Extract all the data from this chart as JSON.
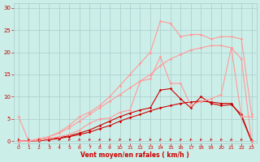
{
  "bg_color": "#cceee8",
  "grid_color": "#aacccc",
  "xlabel": "Vent moyen/en rafales ( km/h )",
  "xlabel_color": "#cc0000",
  "xticks": [
    0,
    1,
    2,
    3,
    4,
    5,
    6,
    7,
    8,
    9,
    10,
    11,
    12,
    13,
    14,
    15,
    16,
    17,
    18,
    19,
    20,
    21,
    22,
    23
  ],
  "yticks": [
    0,
    5,
    10,
    15,
    20,
    25,
    30
  ],
  "ylim": [
    -0.5,
    31
  ],
  "xlim": [
    -0.5,
    23.5
  ],
  "lines": [
    {
      "x": [
        0,
        1,
        2,
        3,
        4,
        5,
        6,
        7,
        8,
        9,
        10,
        11,
        12,
        13,
        14,
        15,
        16,
        17,
        18,
        19,
        20,
        21,
        22,
        23
      ],
      "y": [
        0,
        0,
        0.1,
        0.3,
        0.6,
        1.0,
        1.5,
        2.0,
        2.8,
        3.5,
        4.5,
        5.3,
        6.0,
        6.8,
        7.5,
        8.0,
        8.5,
        8.8,
        9.0,
        8.8,
        8.5,
        8.5,
        5.5,
        0.0
      ],
      "color": "#cc0000",
      "lw": 0.8,
      "marker": "D",
      "ms": 1.8
    },
    {
      "x": [
        0,
        1,
        2,
        3,
        4,
        5,
        6,
        7,
        8,
        9,
        10,
        11,
        12,
        13,
        14,
        15,
        16,
        17,
        18,
        19,
        20,
        21,
        22,
        23
      ],
      "y": [
        0,
        0,
        0.2,
        0.5,
        0.8,
        1.2,
        1.8,
        2.5,
        3.5,
        4.5,
        5.5,
        6.3,
        7.0,
        7.5,
        11.5,
        11.8,
        9.5,
        7.5,
        10.0,
        8.5,
        8.0,
        8.2,
        6.0,
        0.0
      ],
      "color": "#cc0000",
      "lw": 0.8,
      "marker": "D",
      "ms": 1.8
    },
    {
      "x": [
        0,
        1,
        2,
        3,
        4,
        5,
        6,
        7,
        8,
        9,
        10,
        11,
        12,
        13,
        14,
        15,
        16,
        17,
        18,
        19,
        20,
        21,
        22,
        23
      ],
      "y": [
        5.5,
        0,
        0.2,
        0.5,
        1.0,
        1.5,
        2.5,
        4.0,
        5.0,
        5.2,
        6.5,
        7.0,
        13.5,
        14.0,
        19.0,
        13.0,
        13.0,
        8.0,
        9.0,
        9.5,
        10.5,
        21.0,
        5.5,
        5.5
      ],
      "color": "#ff9999",
      "lw": 0.8,
      "marker": "D",
      "ms": 1.8
    },
    {
      "x": [
        0,
        1,
        2,
        3,
        4,
        5,
        6,
        7,
        8,
        9,
        10,
        11,
        12,
        13,
        14,
        15,
        16,
        17,
        18,
        19,
        20,
        21,
        22,
        23
      ],
      "y": [
        0,
        0,
        0.5,
        1.0,
        1.8,
        3.0,
        4.5,
        6.0,
        7.5,
        9.0,
        10.5,
        12.0,
        13.5,
        15.0,
        17.0,
        18.5,
        19.5,
        20.5,
        21.0,
        21.5,
        21.5,
        21.0,
        18.5,
        0.0
      ],
      "color": "#ff9999",
      "lw": 0.8,
      "marker": "D",
      "ms": 1.8
    },
    {
      "x": [
        0,
        1,
        2,
        3,
        4,
        5,
        6,
        7,
        8,
        9,
        10,
        11,
        12,
        13,
        14,
        15,
        16,
        17,
        18,
        19,
        20,
        21,
        22,
        23
      ],
      "y": [
        0,
        0,
        0.5,
        1.0,
        2.0,
        3.5,
        5.5,
        6.5,
        8.0,
        10.0,
        12.5,
        15.0,
        17.5,
        20.0,
        27.0,
        26.5,
        23.5,
        24.0,
        24.0,
        23.0,
        23.5,
        23.5,
        23.0,
        6.0
      ],
      "color": "#ff9999",
      "lw": 0.8,
      "marker": "D",
      "ms": 1.8
    }
  ]
}
